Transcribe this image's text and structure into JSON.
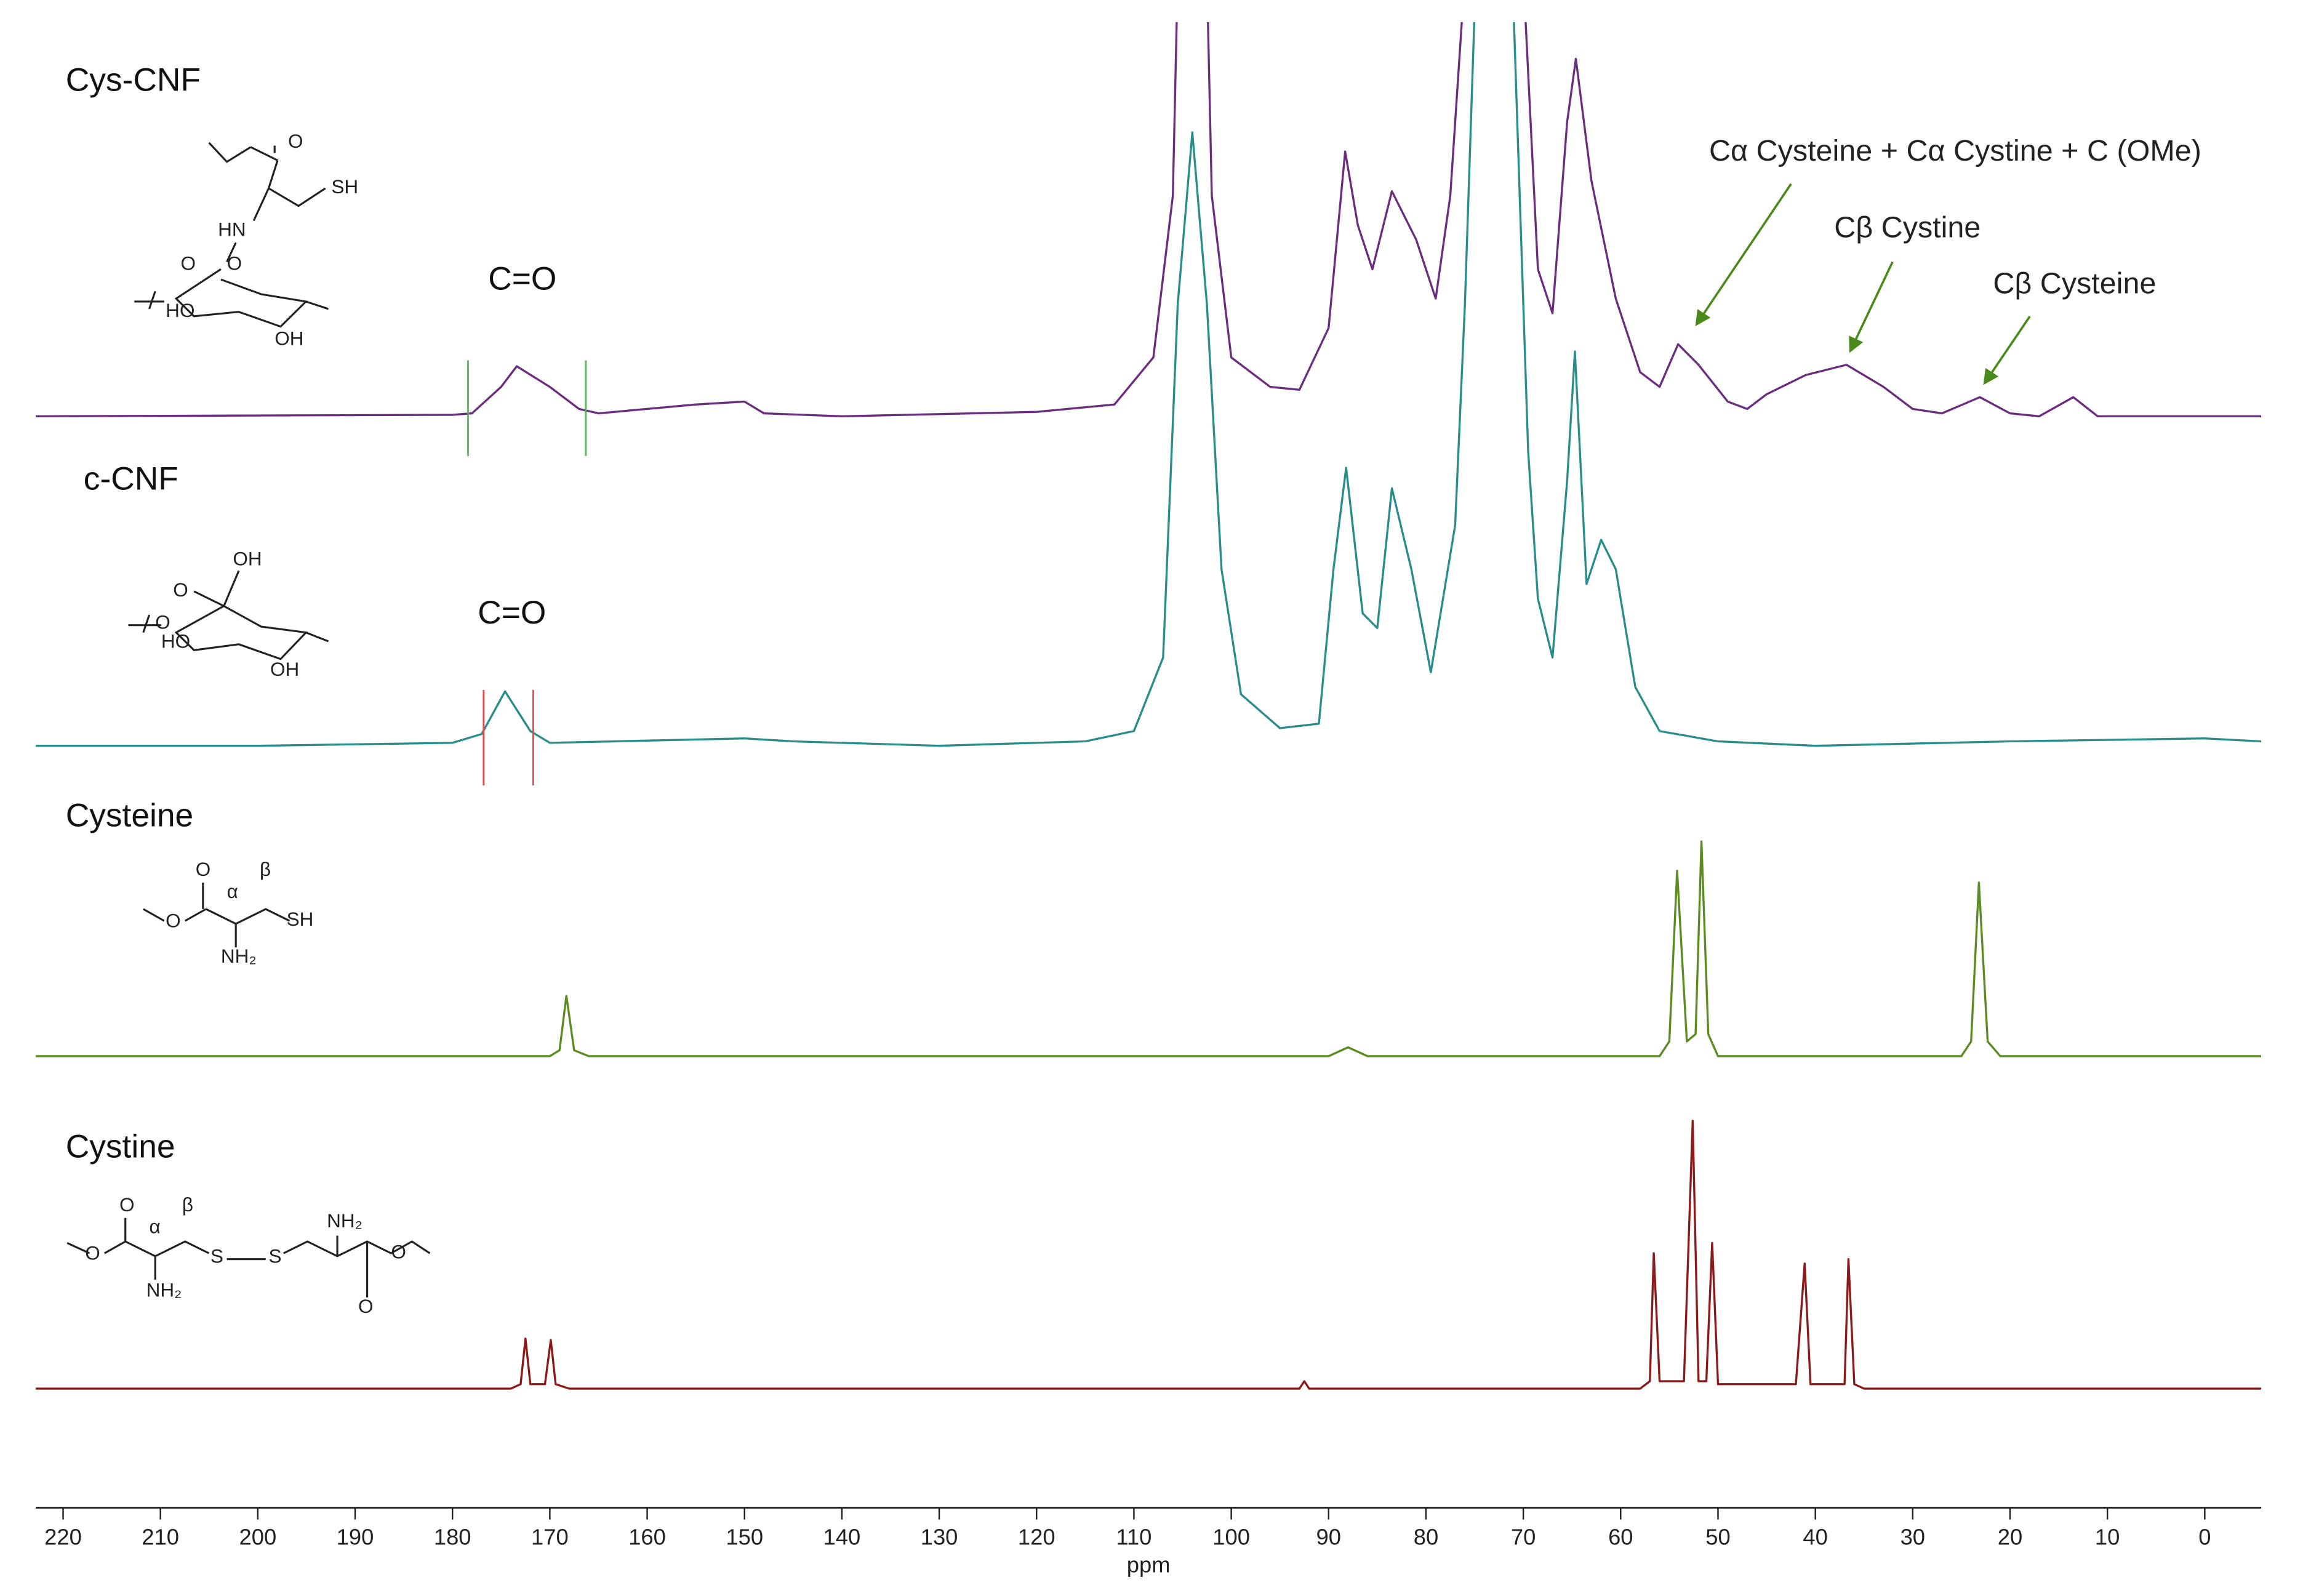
{
  "chart_data": {
    "type": "line",
    "xlabel": "ppm",
    "xlim": [
      222.8,
      -5.8
    ],
    "xticks": [
      220,
      210,
      200,
      190,
      180,
      170,
      160,
      150,
      140,
      130,
      120,
      110,
      100,
      90,
      80,
      70,
      60,
      50,
      40,
      30,
      20,
      10,
      0
    ],
    "series": [
      {
        "name": "Cys-CNF",
        "color": "#6b2d7d",
        "x": [
          222.8,
          180,
          178,
          175,
          173.4,
          170,
          167,
          165,
          155,
          150,
          148,
          140,
          120,
          112,
          108,
          106,
          105,
          103,
          102,
          100,
          96,
          93,
          90,
          88.3,
          87,
          85.5,
          83.5,
          81,
          79,
          77.5,
          76,
          74,
          72,
          70,
          68.5,
          67,
          65.5,
          64.6,
          63,
          62,
          60.5,
          58,
          56,
          54.1,
          52,
          49,
          47,
          45,
          41,
          36.8,
          33,
          30,
          27,
          23.1,
          20,
          17,
          13.5,
          11,
          0,
          -5.8
        ],
        "values": [
          0,
          1,
          2,
          20,
          34,
          20,
          5,
          2,
          8,
          10,
          2,
          0,
          3,
          8,
          40,
          150,
          450,
          450,
          150,
          40,
          20,
          18,
          60,
          180,
          130,
          100,
          153,
          120,
          80,
          150,
          300,
          700,
          700,
          300,
          100,
          70,
          200,
          243,
          160,
          128,
          80,
          30,
          20,
          49,
          35,
          10,
          5,
          15,
          28,
          35,
          20,
          5,
          2,
          13,
          2,
          0,
          13,
          0,
          0,
          0
        ],
        "integration_color": "#5cb85c",
        "integration_bounds": [
          178.4,
          166.3
        ],
        "structure_labels": [
          "O",
          "SH",
          "HN",
          "O",
          "O",
          "HO",
          "OH"
        ]
      },
      {
        "name": "c-CNF",
        "color": "#2b8c8c",
        "x": [
          222.8,
          200,
          180,
          177,
          174.6,
          172,
          170,
          150,
          145,
          130,
          115,
          110,
          107,
          105.5,
          104,
          102.5,
          101,
          99,
          95,
          91,
          89.5,
          88.2,
          86.5,
          85,
          83.5,
          81.5,
          79.5,
          77,
          76,
          74,
          72,
          70,
          69.5,
          68.5,
          67,
          65.5,
          64.7,
          63.5,
          62,
          60.5,
          58.5,
          56,
          50,
          40,
          20,
          0,
          -5.8
        ],
        "values": [
          0,
          0,
          2,
          8,
          37,
          10,
          2,
          5,
          3,
          0,
          3,
          10,
          60,
          300,
          417,
          300,
          120,
          35,
          12,
          15,
          120,
          189,
          90,
          80,
          175,
          120,
          50,
          150,
          300,
          700,
          700,
          300,
          200,
          100,
          60,
          180,
          268,
          110,
          140,
          120,
          40,
          10,
          3,
          0,
          3,
          5,
          3
        ],
        "integration_color": "#e05050",
        "integration_bounds": [
          176.8,
          171.7
        ],
        "structure_labels": [
          "OH",
          "O",
          "O",
          "HO",
          "OH"
        ]
      },
      {
        "name": "Cysteine",
        "color": "#5b8c22",
        "x": [
          222.8,
          170,
          169,
          168.3,
          167.5,
          166,
          90,
          88,
          86,
          56,
          55,
          54.2,
          53.2,
          52.3,
          51.7,
          51,
          50,
          25,
          24,
          23.2,
          22.3,
          21,
          0,
          -5.8
        ],
        "values": [
          0,
          0,
          4,
          41,
          4,
          0,
          0,
          6,
          0,
          0,
          10,
          126,
          10,
          15,
          146,
          15,
          0,
          0,
          10,
          118,
          10,
          0,
          0,
          0
        ],
        "structure_labels": [
          "O",
          "α",
          "β",
          "O",
          "SH",
          "NH₂"
        ]
      },
      {
        "name": "Cystine",
        "color": "#8b1a1a",
        "x": [
          222.8,
          174,
          173,
          172.5,
          172,
          170.5,
          169.9,
          169.4,
          168,
          93,
          92.5,
          92,
          58,
          57,
          56.6,
          56,
          53.5,
          52.6,
          52,
          51.2,
          50.6,
          50,
          42,
          41.1,
          40.5,
          37,
          36.6,
          36,
          35,
          0,
          -5.8
        ],
        "values": [
          0,
          0,
          3,
          34,
          3,
          3,
          33,
          3,
          0,
          0,
          5,
          0,
          0,
          5,
          92,
          5,
          5,
          182,
          5,
          5,
          99,
          3,
          3,
          85,
          3,
          3,
          88,
          3,
          0,
          0,
          0
        ],
        "structure_labels": [
          "O",
          "α",
          "β",
          "O",
          "S",
          "S",
          "NH₂",
          "NH₂",
          "O",
          "O"
        ]
      }
    ],
    "annotations": [
      "C=O",
      "C=O",
      "Cα Cysteine + Cα Cystine + C (OMe)",
      "Cβ Cystine",
      "Cβ Cysteine"
    ]
  }
}
